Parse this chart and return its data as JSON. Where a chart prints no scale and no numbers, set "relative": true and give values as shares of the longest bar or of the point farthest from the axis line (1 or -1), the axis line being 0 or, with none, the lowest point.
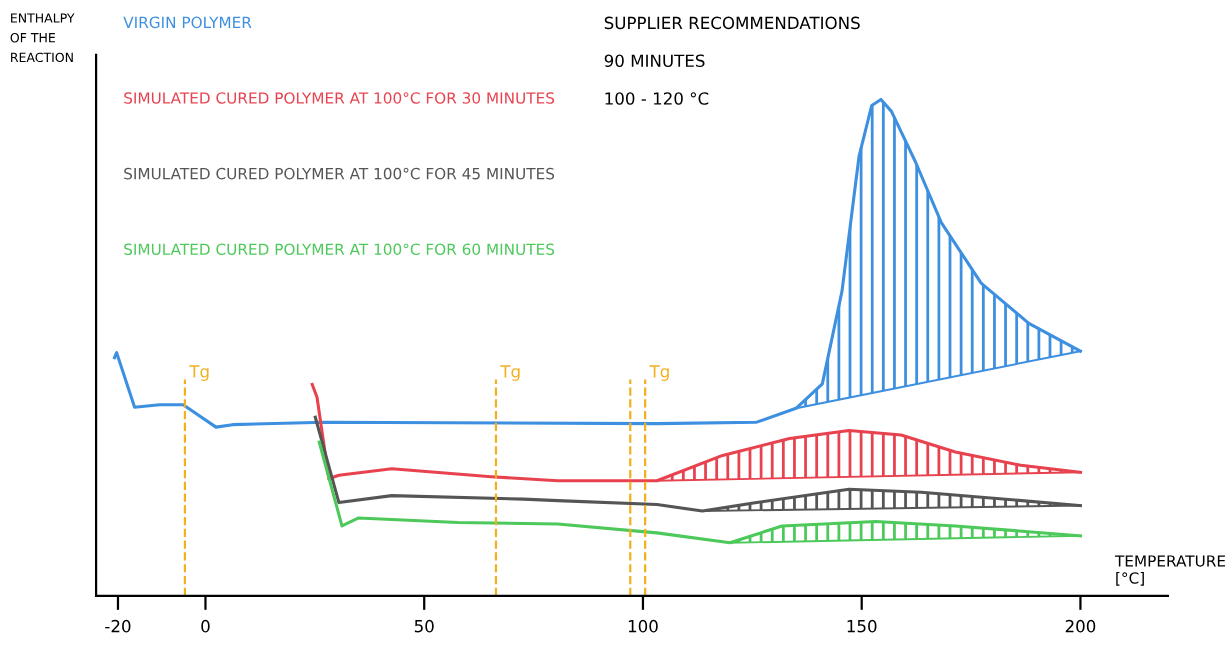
{
  "chart_data": {
    "type": "line",
    "relative": true,
    "xlabel": "TEMPERATURE\n[°C]",
    "ylabel": "ENTHALPY\nOF THE\nREACTION",
    "xlim": [
      -25,
      220
    ],
    "xticks": [
      -20,
      0,
      50,
      100,
      150,
      200
    ],
    "legend": "top left",
    "grid": false,
    "marker": "none",
    "line_style": "solid",
    "series": [
      {
        "name": "VIRGIN POLYMER",
        "color": "#3d8fe0",
        "x": [
          -20.8,
          -20.3,
          -16.2,
          -10.5,
          -5.1,
          2.4,
          6.2,
          27.3,
          103.2,
          126,
          135,
          141,
          145.5,
          149.4,
          152.3,
          154.4,
          156.8,
          162.3,
          168.2,
          177.3,
          188.2,
          200
        ],
        "values": [
          0.48,
          0.49,
          0.38,
          0.385,
          0.385,
          0.34,
          0.345,
          0.35,
          0.347,
          0.35,
          0.378,
          0.427,
          0.614,
          0.886,
          0.988,
          1.0,
          0.976,
          0.874,
          0.752,
          0.63,
          0.549,
          0.493
        ]
      },
      {
        "type": "line",
        "color": "#3d8fe0",
        "x": [
          135,
          200
        ],
        "values": [
          0.378,
          0.493
        ]
      },
      {
        "name": "SIMULATED CURED POLYMER AT 100°C FOR 30 MINUTES",
        "color": "#e8424f",
        "x": [
          24.4,
          25.5,
          28.2,
          30.5,
          42.6,
          65.3,
          80.5,
          103.2,
          118.2,
          133.5,
          147.1,
          159,
          171.4,
          186.4,
          200
        ],
        "values": [
          0.426,
          0.4,
          0.236,
          0.243,
          0.256,
          0.24,
          0.232,
          0.232,
          0.283,
          0.317,
          0.333,
          0.324,
          0.29,
          0.263,
          0.249
        ]
      },
      {
        "type": "line",
        "color": "#e8424f",
        "x": [
          103.2,
          200
        ],
        "values": [
          0.232,
          0.249
        ]
      },
      {
        "name": "SIMULATED CURED POLYMER AT 100°C FOR 45 MINUTES",
        "color": "#555555",
        "x": [
          25.1,
          30.5,
          42.6,
          72.7,
          80.5,
          103.2,
          113.6,
          126,
          147.1,
          163.6,
          200
        ],
        "values": [
          0.36,
          0.188,
          0.202,
          0.195,
          0.192,
          0.184,
          0.171,
          0.188,
          0.215,
          0.209,
          0.182
        ]
      },
      {
        "type": "line",
        "color": "#555555",
        "x": [
          113.6,
          200
        ],
        "values": [
          0.171,
          0.182
        ]
      },
      {
        "name": "SIMULATED CURED POLYMER AT 100°C FOR 60 MINUTES",
        "color": "#4cc95a",
        "x": [
          26,
          31.2,
          35,
          57.7,
          80.5,
          103.2,
          119.9,
          131.8,
          153.2,
          171.4,
          200
        ],
        "values": [
          0.31,
          0.141,
          0.157,
          0.148,
          0.145,
          0.127,
          0.107,
          0.141,
          0.15,
          0.141,
          0.121
        ]
      },
      {
        "type": "line",
        "color": "#4cc95a",
        "x": [
          119.9,
          200
        ],
        "values": [
          0.107,
          0.121
        ]
      }
    ],
    "ref_lines": [
      {
        "axis": "x",
        "value": -4.7,
        "label": "Tg",
        "color": "#f2b01e",
        "line_style": "dashed"
      },
      {
        "axis": "x",
        "value": 66.4,
        "label": "Tg",
        "color": "#f2b01e",
        "line_style": "dashed"
      },
      {
        "axis": "x",
        "value": 97.1,
        "label": null,
        "color": "#f2b01e",
        "line_style": "dashed"
      },
      {
        "axis": "x",
        "value": 100.5,
        "label": "Tg",
        "color": "#f2b01e",
        "line_style": "dashed"
      }
    ],
    "annotations": [
      "SUPPLIER RECOMMENDATIONS",
      "90 MINUTES",
      "100 - 120 °C"
    ]
  }
}
